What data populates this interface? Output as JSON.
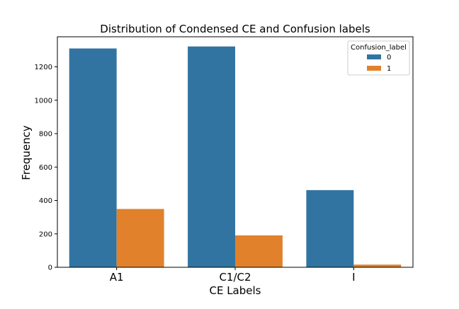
{
  "chart_data": {
    "type": "bar",
    "title": "Distribution of Condensed CE and Confusion labels",
    "xlabel": "CE Labels",
    "ylabel": "Frequency",
    "categories": [
      "A1",
      "C1/C2",
      "I"
    ],
    "series": [
      {
        "name": "0",
        "values": [
          1310,
          1322,
          462
        ],
        "color": "#3274a1"
      },
      {
        "name": "1",
        "values": [
          349,
          191,
          16
        ],
        "color": "#e1812c"
      }
    ],
    "ylim": [
      0,
      1380
    ],
    "yticks": [
      0,
      200,
      400,
      600,
      800,
      1000,
      1200
    ],
    "grid": false,
    "legend": {
      "title": "Confusion_label",
      "placement": "top-right"
    }
  }
}
